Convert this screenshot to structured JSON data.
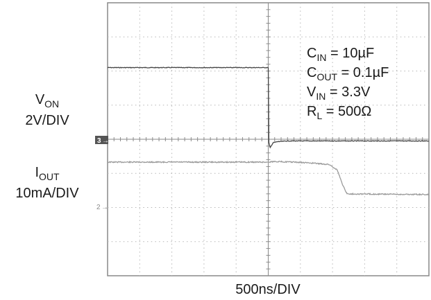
{
  "chart_data": {
    "type": "line",
    "xlabel": "500ns/DIV",
    "grid": true,
    "x_divisions": 10,
    "y_divisions": 8,
    "x_range_div": [
      0,
      10
    ],
    "y_range_div": [
      0,
      8
    ],
    "annotations": [
      {
        "main": "C",
        "sub": "IN",
        "rest": " = 10µF"
      },
      {
        "main": "C",
        "sub": "OUT",
        "rest": " = 0.1µF"
      },
      {
        "main": "V",
        "sub": "IN",
        "rest": " = 3.3V"
      },
      {
        "main": "R",
        "sub": "L",
        "rest": " = 500Ω"
      }
    ],
    "channel_labels": [
      {
        "main": "V",
        "sub": "ON",
        "scale": "2V/DIV"
      },
      {
        "main": "I",
        "sub": "OUT",
        "scale": "10mA/DIV"
      }
    ],
    "channel_markers": [
      "3",
      "2"
    ],
    "series": [
      {
        "channel": "3",
        "color": "#444444",
        "x": [
          0,
          5.0,
          5.0,
          5.02,
          5.06,
          5.15,
          5.3,
          5.6,
          10
        ],
        "y": [
          6.1,
          6.1,
          6.1,
          3.9,
          3.75,
          3.9,
          3.93,
          3.95,
          3.95
        ]
      },
      {
        "channel": "2",
        "color": "#9a9a9a",
        "x": [
          0,
          5.0,
          5.2,
          5.8,
          6.4,
          6.9,
          7.15,
          7.3,
          7.45,
          10
        ],
        "y": [
          3.33,
          3.33,
          3.35,
          3.33,
          3.3,
          3.26,
          3.1,
          2.7,
          2.4,
          2.38
        ]
      }
    ]
  }
}
